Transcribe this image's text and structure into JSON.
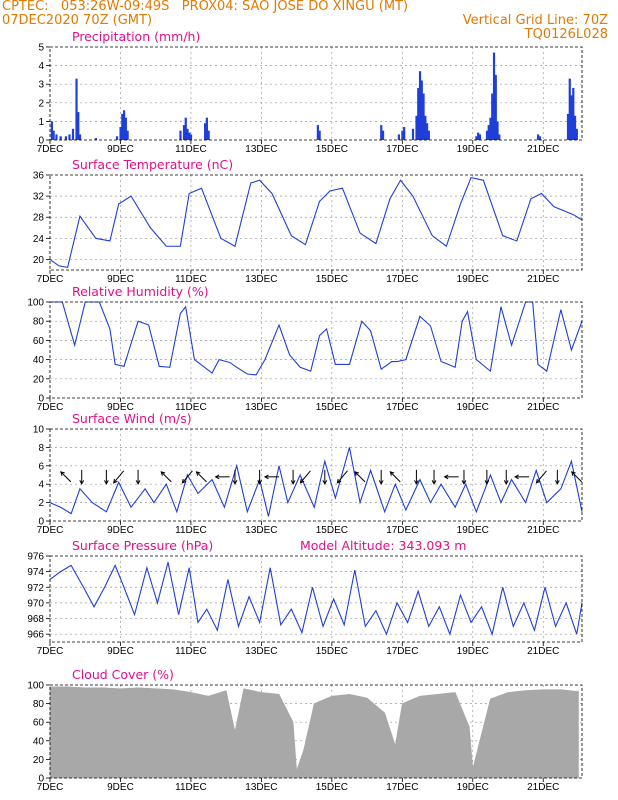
{
  "header": {
    "line1_left": "CPTEC:   053:26W-09:49S   PROX04: SAO JOSE DO XINGU (MT)",
    "line2_left": "07DEC2020 70Z (GMT)",
    "line2_right": "Vertical Grid Line: 70Z",
    "line3_right": "TQ0126L028"
  },
  "colors": {
    "header": "#e07a00",
    "title": "#e0108a",
    "series": "#1f3fd8",
    "cloud": "#a8a8a8"
  },
  "x_axis": {
    "labels": [
      "7DEC",
      "9DEC",
      "11DEC",
      "13DEC",
      "15DEC",
      "17DEC",
      "19DEC",
      "21DEC"
    ],
    "day_start": 7,
    "day_end": 22.1
  },
  "chart_data": [
    {
      "id": "precip",
      "type": "bar",
      "title": "Precipitation (mm/h)",
      "ylim": [
        0,
        5
      ],
      "yticks": [
        0,
        1,
        2,
        3,
        4,
        5
      ],
      "series": [
        {
          "x": [
            7.05,
            7.1,
            7.18,
            7.3,
            7.45,
            7.55,
            7.65,
            7.75,
            7.8,
            7.85
          ],
          "values": [
            1.0,
            0.5,
            0.3,
            0.2,
            0.2,
            0.3,
            0.6,
            3.3,
            1.5,
            0.3
          ]
        },
        {
          "x": [
            8.3,
            8.9,
            9.0,
            9.05,
            9.1,
            9.15,
            9.2
          ],
          "values": [
            0.1,
            0.2,
            0.7,
            1.4,
            1.6,
            1.2,
            0.5
          ]
        },
        {
          "x": [
            10.7,
            10.8,
            10.85,
            10.9,
            10.95,
            11.0,
            11.4,
            11.45,
            11.5
          ],
          "values": [
            0.5,
            0.8,
            1.2,
            0.6,
            0.4,
            0.3,
            0.9,
            1.2,
            0.5
          ]
        },
        {
          "x": [
            14.6,
            14.65,
            16.4,
            16.45,
            16.9,
            17.0,
            17.05,
            17.3,
            17.4,
            17.45,
            17.5,
            17.55,
            17.6,
            17.65,
            17.7,
            17.75
          ],
          "values": [
            0.8,
            0.5,
            0.8,
            0.5,
            0.3,
            0.5,
            0.7,
            0.6,
            1.3,
            2.8,
            3.7,
            3.2,
            2.5,
            1.3,
            0.9,
            0.5
          ]
        },
        {
          "x": [
            19.1,
            19.15,
            19.2,
            19.4,
            19.45,
            19.5,
            19.55,
            19.6,
            19.65,
            19.7,
            19.75
          ],
          "values": [
            0.2,
            0.4,
            0.3,
            0.5,
            0.8,
            1.2,
            2.5,
            4.7,
            3.5,
            1.0,
            0.3
          ]
        },
        {
          "x": [
            20.85,
            20.9,
            21.7,
            21.75,
            21.8,
            21.85,
            21.9,
            21.95
          ],
          "values": [
            0.3,
            0.2,
            1.4,
            3.3,
            2.4,
            2.8,
            1.3,
            0.6
          ]
        }
      ]
    },
    {
      "id": "temp",
      "type": "line",
      "title": "Surface Temperature (nC)",
      "ylim": [
        18,
        36
      ],
      "yticks": [
        20,
        24,
        28,
        32,
        36
      ],
      "x": [
        7.0,
        7.25,
        7.5,
        7.85,
        8.3,
        8.7,
        8.95,
        9.3,
        9.85,
        10.3,
        10.7,
        10.95,
        11.3,
        11.85,
        12.25,
        12.7,
        12.95,
        13.3,
        13.85,
        14.25,
        14.65,
        14.95,
        15.3,
        15.8,
        16.25,
        16.65,
        16.95,
        17.3,
        17.85,
        18.25,
        18.65,
        18.95,
        19.3,
        19.85,
        20.25,
        20.65,
        20.95,
        21.3,
        21.85,
        22.1
      ],
      "y": [
        20,
        18.8,
        18.5,
        28.2,
        24,
        23.5,
        30.5,
        32,
        26,
        22.5,
        22.5,
        32.5,
        33.5,
        24,
        22.5,
        34.5,
        35,
        32.5,
        24.5,
        22.8,
        31,
        33,
        33.5,
        25,
        23,
        31.5,
        35,
        32,
        24.5,
        22.5,
        30.5,
        35.5,
        35,
        24.5,
        23.5,
        31.5,
        32.5,
        30,
        28.5,
        27.5
      ]
    },
    {
      "id": "rh",
      "type": "line",
      "title": "Relative Humidity (%)",
      "ylim": [
        0,
        100
      ],
      "yticks": [
        0,
        20,
        40,
        60,
        80,
        100
      ],
      "x": [
        7.0,
        7.35,
        7.7,
        8.0,
        8.4,
        8.7,
        8.85,
        9.1,
        9.5,
        9.8,
        10.1,
        10.4,
        10.7,
        10.85,
        11.1,
        11.6,
        11.8,
        12.1,
        12.3,
        12.6,
        12.85,
        13.1,
        13.5,
        13.8,
        14.1,
        14.4,
        14.65,
        14.85,
        15.1,
        15.5,
        15.85,
        16.1,
        16.4,
        16.7,
        16.85,
        17.1,
        17.5,
        17.8,
        18.1,
        18.5,
        18.7,
        18.85,
        19.1,
        19.5,
        19.8,
        20.1,
        20.5,
        20.7,
        20.85,
        21.1,
        21.5,
        21.8,
        22.1
      ],
      "y": [
        100,
        100,
        55,
        100,
        100,
        72,
        35,
        33,
        80,
        76,
        33,
        32,
        88,
        95,
        40,
        26,
        40,
        37,
        32,
        25,
        24,
        40,
        76,
        45,
        32,
        28,
        65,
        72,
        35,
        35,
        80,
        70,
        30,
        38,
        38,
        40,
        85,
        75,
        38,
        32,
        80,
        90,
        40,
        28,
        95,
        55,
        100,
        100,
        35,
        28,
        92,
        50,
        80
      ]
    },
    {
      "id": "wind",
      "type": "line",
      "title": "Surface Wind (m/s)",
      "ylim": [
        0,
        10
      ],
      "yticks": [
        0,
        2,
        4,
        6,
        8,
        10
      ],
      "x": [
        7.0,
        7.3,
        7.6,
        7.85,
        8.2,
        8.6,
        8.95,
        9.3,
        9.7,
        9.95,
        10.3,
        10.6,
        10.9,
        11.2,
        11.6,
        11.95,
        12.3,
        12.6,
        12.95,
        13.2,
        13.5,
        13.75,
        14.1,
        14.5,
        14.8,
        15.1,
        15.5,
        15.8,
        16.1,
        16.5,
        16.8,
        17.1,
        17.5,
        17.8,
        18.1,
        18.5,
        18.8,
        19.1,
        19.5,
        19.8,
        20.1,
        20.5,
        20.8,
        21.1,
        21.5,
        21.8,
        22.1
      ],
      "y": [
        2,
        1.5,
        0.8,
        3.5,
        2,
        1,
        4.2,
        1.5,
        3.5,
        2,
        4,
        1,
        5,
        3,
        4.5,
        1.5,
        6,
        1,
        4.5,
        0.5,
        6,
        2,
        5,
        1.5,
        6.5,
        2.5,
        8,
        2,
        5.5,
        1,
        4,
        1.2,
        4.5,
        2,
        4,
        1.5,
        4,
        1,
        5,
        2,
        4.5,
        2,
        5.5,
        2,
        3.5,
        6.5,
        1
      ]
    },
    {
      "id": "pressure",
      "type": "line",
      "title": "Surface Pressure (hPa)",
      "annotation": "Model Altitude: 343.093 m",
      "ylim": [
        965,
        976
      ],
      "yticks": [
        966,
        968,
        970,
        972,
        974,
        976
      ],
      "x": [
        7.0,
        7.3,
        7.6,
        7.95,
        8.25,
        8.55,
        8.85,
        9.1,
        9.4,
        9.75,
        10.05,
        10.35,
        10.65,
        10.95,
        11.2,
        11.45,
        11.75,
        12.05,
        12.35,
        12.65,
        12.95,
        13.25,
        13.55,
        13.85,
        14.15,
        14.45,
        14.75,
        15.05,
        15.35,
        15.65,
        15.95,
        16.25,
        16.55,
        16.85,
        17.15,
        17.45,
        17.75,
        18.05,
        18.35,
        18.65,
        18.95,
        19.25,
        19.55,
        19.85,
        20.15,
        20.45,
        20.75,
        21.05,
        21.35,
        21.65,
        21.95,
        22.1
      ],
      "y": [
        973,
        974,
        974.8,
        972,
        969.5,
        972,
        974.8,
        972,
        968.5,
        974.5,
        970,
        975.2,
        968.5,
        974.5,
        967.5,
        969.2,
        966.5,
        973,
        967,
        970.8,
        967.5,
        974.5,
        967.2,
        969.2,
        966.2,
        972,
        967,
        970.5,
        967.2,
        974.2,
        967,
        969,
        966,
        970,
        967.5,
        971.5,
        967,
        969.5,
        966,
        971,
        967.5,
        969.5,
        966,
        972,
        967,
        970,
        966.5,
        972,
        967,
        970,
        966,
        970
      ]
    },
    {
      "id": "cloud",
      "type": "bar",
      "title": "Cloud Cover (%)",
      "ylim": [
        0,
        100
      ],
      "yticks": [
        0,
        20,
        40,
        60,
        80,
        100
      ],
      "x": [
        7.0,
        7.5,
        8.0,
        8.5,
        9.0,
        9.5,
        10.0,
        10.5,
        11.0,
        11.5,
        12.0,
        12.25,
        12.5,
        13.0,
        13.5,
        13.9,
        14.0,
        14.2,
        14.5,
        15.0,
        15.5,
        16.0,
        16.5,
        16.8,
        17.0,
        17.5,
        18.0,
        18.5,
        18.9,
        19.0,
        19.2,
        19.5,
        20.0,
        20.5,
        21.0,
        21.5,
        22.0
      ],
      "values": [
        98,
        98,
        97,
        97,
        96,
        97,
        96,
        95,
        92,
        88,
        94,
        50,
        96,
        92,
        90,
        60,
        8,
        30,
        80,
        88,
        90,
        86,
        70,
        35,
        80,
        88,
        90,
        92,
        55,
        10,
        40,
        85,
        92,
        94,
        95,
        95,
        93
      ]
    }
  ],
  "wind_arrows": [
    {
      "x": 7.45,
      "dir": "up-left"
    },
    {
      "x": 7.9,
      "dir": "down"
    },
    {
      "x": 8.6,
      "dir": "down"
    },
    {
      "x": 8.95,
      "dir": "down-left"
    },
    {
      "x": 9.5,
      "dir": "down"
    },
    {
      "x": 10.3,
      "dir": "up-left"
    },
    {
      "x": 10.9,
      "dir": "down-left"
    },
    {
      "x": 11.3,
      "dir": "up-left"
    },
    {
      "x": 11.9,
      "dir": "left"
    },
    {
      "x": 12.25,
      "dir": "down"
    },
    {
      "x": 12.95,
      "dir": "down"
    },
    {
      "x": 13.3,
      "dir": "left"
    },
    {
      "x": 13.9,
      "dir": "down"
    },
    {
      "x": 14.25,
      "dir": "down-left"
    },
    {
      "x": 14.8,
      "dir": "down"
    },
    {
      "x": 15.3,
      "dir": "down-left"
    },
    {
      "x": 15.8,
      "dir": "up-left"
    },
    {
      "x": 16.4,
      "dir": "down"
    },
    {
      "x": 16.8,
      "dir": "up-left"
    },
    {
      "x": 17.4,
      "dir": "down"
    },
    {
      "x": 17.9,
      "dir": "down"
    },
    {
      "x": 18.4,
      "dir": "left"
    },
    {
      "x": 18.75,
      "dir": "down"
    },
    {
      "x": 19.4,
      "dir": "down"
    },
    {
      "x": 19.95,
      "dir": "down"
    },
    {
      "x": 20.4,
      "dir": "left"
    },
    {
      "x": 20.95,
      "dir": "down-left"
    },
    {
      "x": 21.4,
      "dir": "down"
    },
    {
      "x": 21.95,
      "dir": "up-left"
    }
  ]
}
